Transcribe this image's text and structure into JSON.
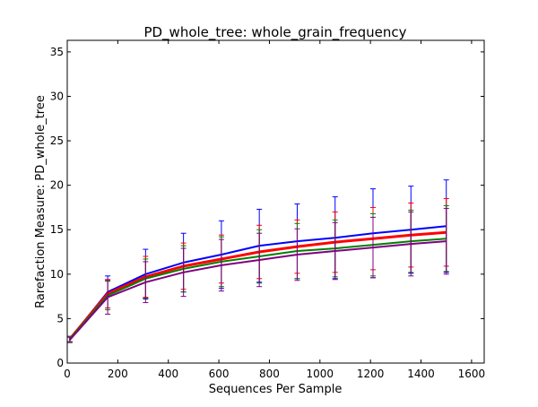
{
  "chart_data": {
    "type": "line",
    "title": "PD_whole_tree: whole_grain_frequency",
    "xlabel": "Sequences Per Sample",
    "ylabel": "Rarefaction Measure: PD_whole_tree",
    "xlim": [
      0,
      1650
    ],
    "ylim": [
      0,
      36.3
    ],
    "xticks": [
      0,
      200,
      400,
      600,
      800,
      1000,
      1200,
      1400,
      1600
    ],
    "yticks": [
      0,
      5,
      10,
      15,
      20,
      25,
      30,
      35
    ],
    "grid": false,
    "legend": "none",
    "x": [
      10,
      160,
      310,
      460,
      610,
      760,
      910,
      1060,
      1210,
      1360,
      1500
    ],
    "series": [
      {
        "color": "#0000ff",
        "linewidth": 2,
        "values": [
          2.7,
          8.0,
          10.0,
          11.3,
          12.2,
          13.2,
          13.7,
          14.1,
          14.6,
          15.0,
          15.4
        ],
        "errors": [
          0.3,
          1.8,
          2.8,
          3.3,
          3.8,
          4.1,
          4.2,
          4.6,
          5.0,
          4.9,
          5.2
        ]
      },
      {
        "color": "#ff0000",
        "linewidth": 3,
        "values": [
          2.7,
          7.8,
          9.7,
          10.9,
          11.7,
          12.5,
          13.1,
          13.6,
          14.0,
          14.4,
          14.7
        ],
        "errors": [
          0.3,
          1.6,
          2.3,
          2.6,
          2.7,
          3.0,
          3.0,
          3.4,
          3.5,
          3.6,
          3.8
        ]
      },
      {
        "color": "#008000",
        "linewidth": 2,
        "values": [
          2.7,
          7.6,
          9.5,
          10.6,
          11.4,
          12.0,
          12.6,
          12.9,
          13.3,
          13.7,
          14.0
        ],
        "errors": [
          0.3,
          1.6,
          2.2,
          2.6,
          2.8,
          3.0,
          3.1,
          3.2,
          3.5,
          3.5,
          3.7
        ]
      },
      {
        "color": "#800080",
        "linewidth": 2,
        "values": [
          2.6,
          7.4,
          9.1,
          10.2,
          11.0,
          11.6,
          12.2,
          12.6,
          13.0,
          13.4,
          13.7
        ],
        "errors": [
          0.3,
          1.9,
          2.3,
          2.7,
          2.9,
          3.0,
          2.9,
          3.2,
          3.4,
          3.6,
          3.7
        ]
      }
    ]
  }
}
